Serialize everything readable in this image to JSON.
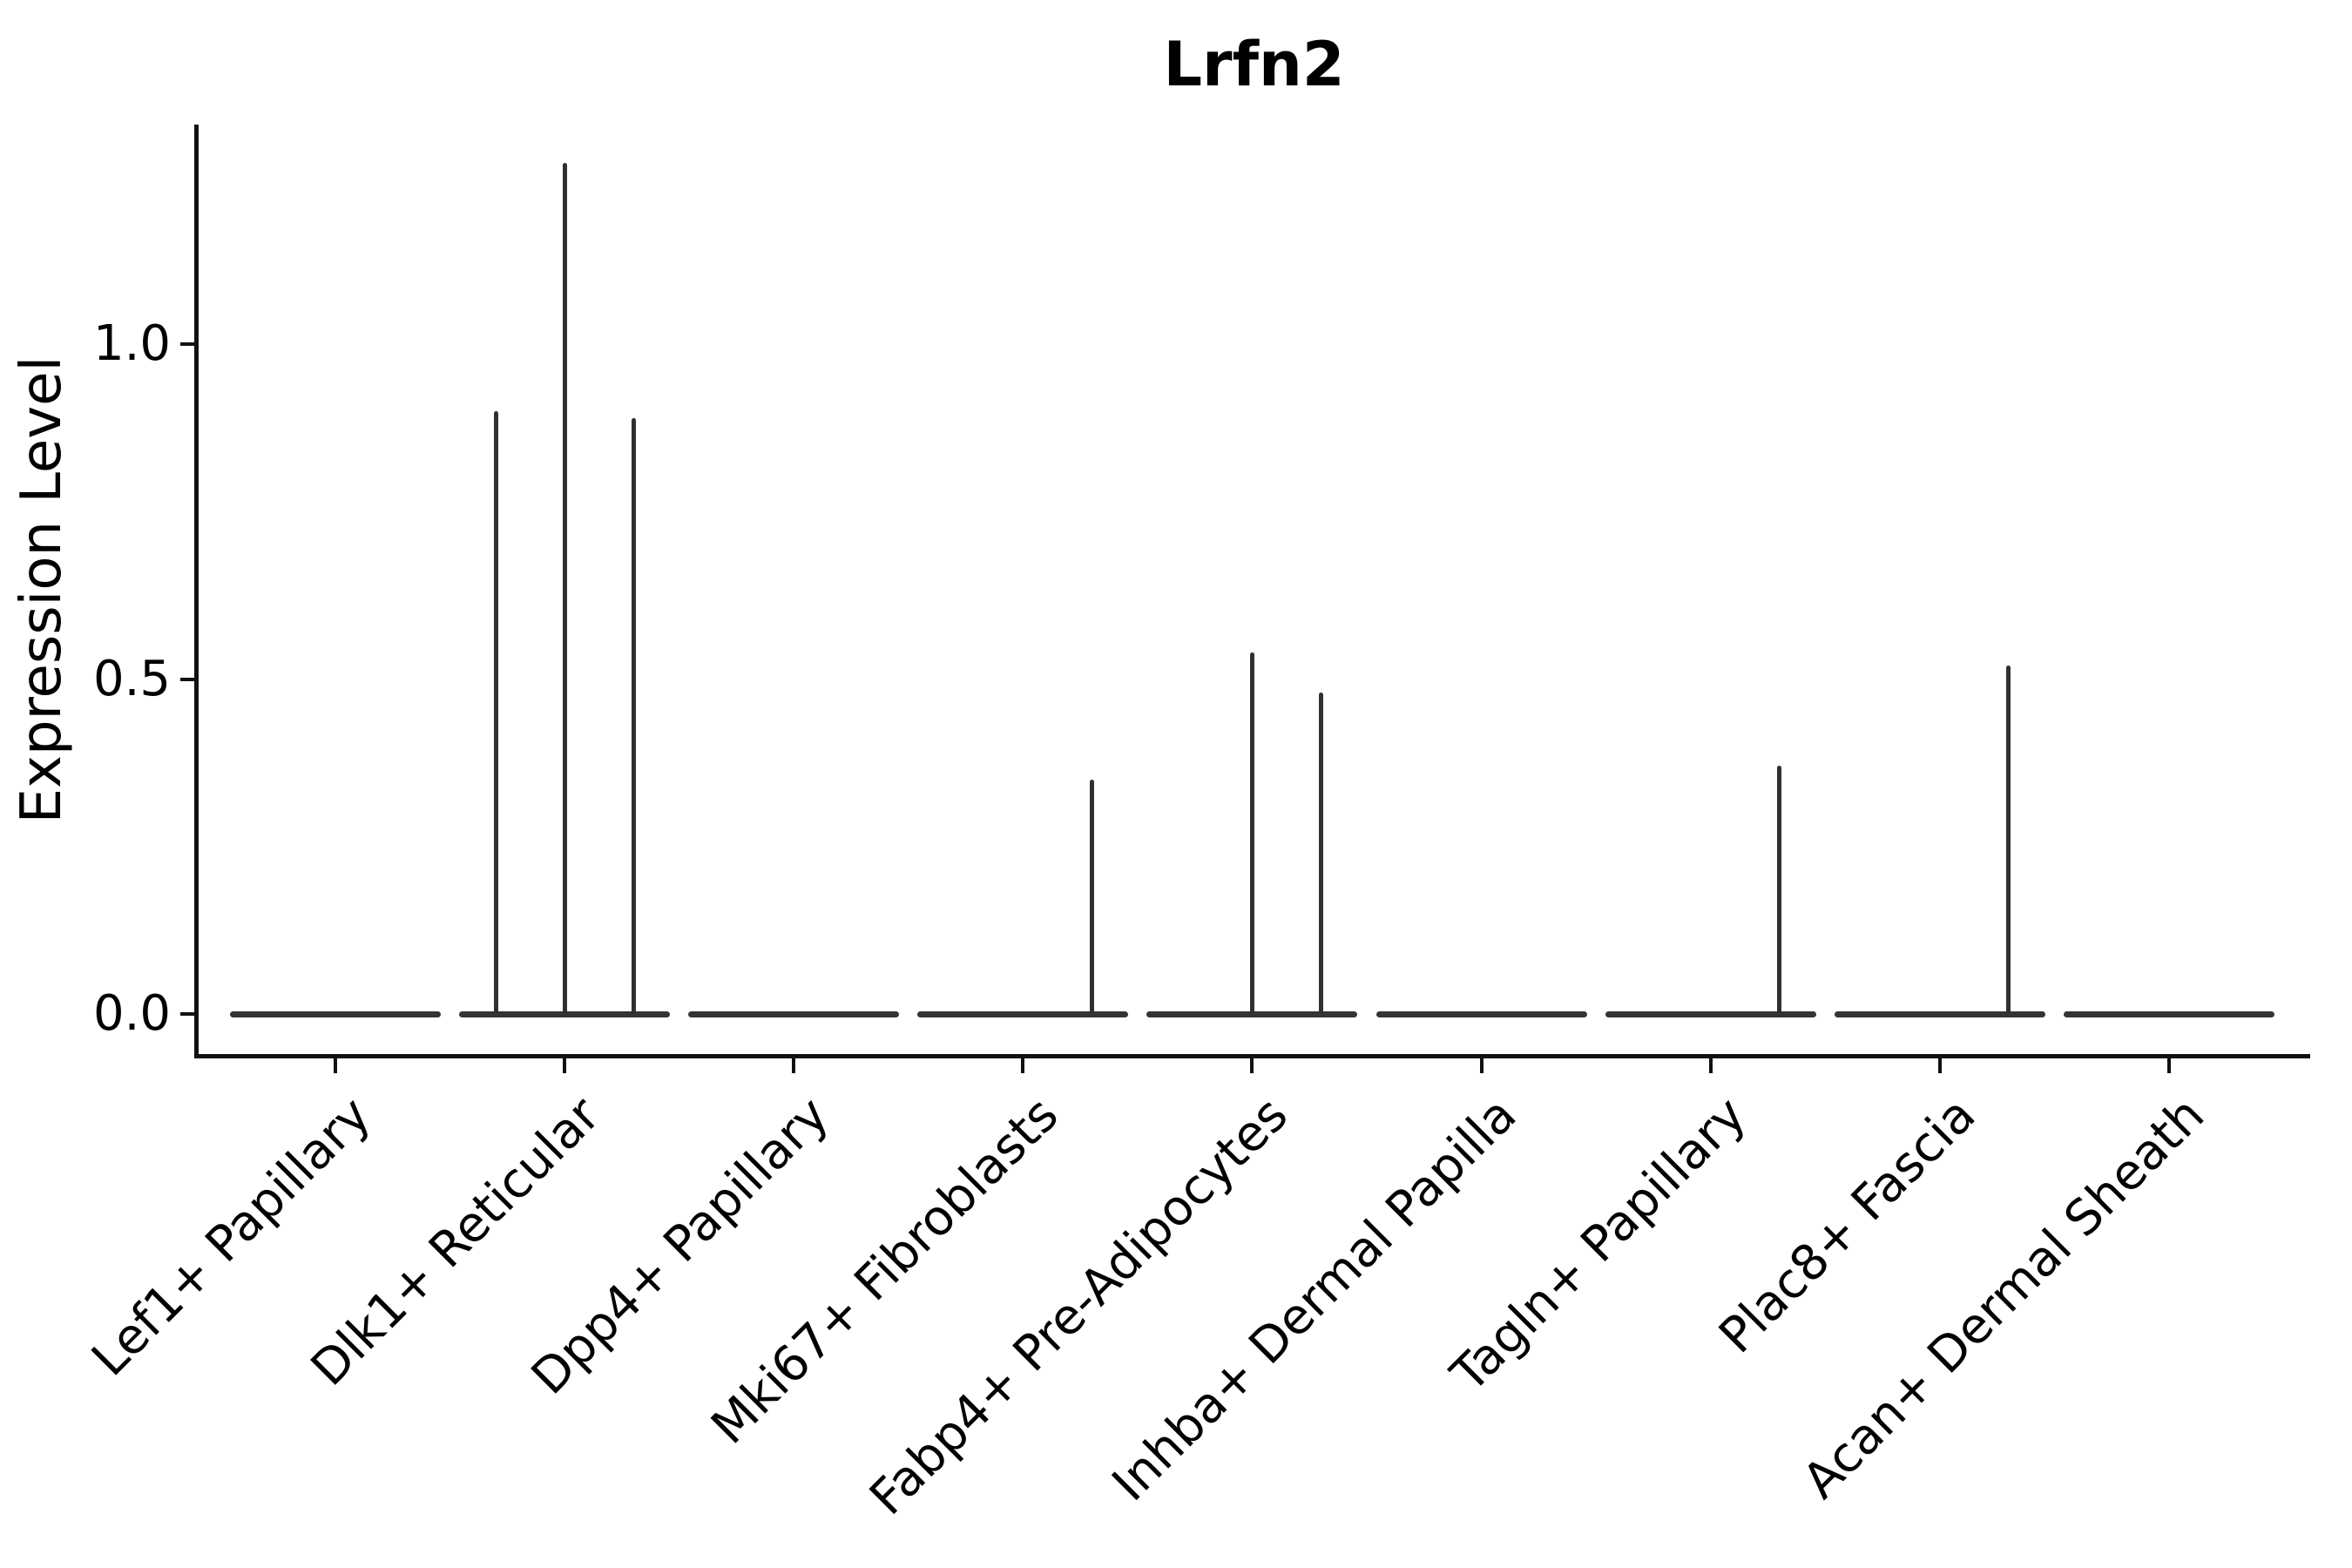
{
  "chart_data": {
    "type": "violin",
    "title": "Lrfn2",
    "ylabel": "Expression Level",
    "xlabel": "",
    "grid": false,
    "legend": false,
    "ylim": [
      -0.06,
      1.32
    ],
    "yticks": [
      "0.0",
      "0.5",
      "1.0"
    ],
    "ytick_values": [
      0.0,
      0.5,
      1.0
    ],
    "categories": [
      "Lef1+ Papillary",
      "Dlk1+ Reticular",
      "Dpp4+ Papillary",
      "Mki67+ Fibroblasts",
      "Fabp4+ Pre-Adipocytes",
      "Inhba+ Dermal Papilla",
      "Tagln+ Papillary",
      "Plac8+ Fascia",
      "Acan+ Dermal Sheath"
    ],
    "baseline_value": 0.0,
    "violin_width_fraction": 0.92,
    "series": [
      {
        "name": "Lef1+ Papillary",
        "baseline": 0.0,
        "spikes": []
      },
      {
        "name": "Dlk1+ Reticular",
        "baseline": 0.0,
        "spikes": [
          {
            "offset": -0.3,
            "value": 0.9
          },
          {
            "offset": 0.0,
            "value": 1.27
          },
          {
            "offset": 0.3,
            "value": 0.89
          }
        ]
      },
      {
        "name": "Dpp4+ Papillary",
        "baseline": 0.0,
        "spikes": []
      },
      {
        "name": "Mki67+ Fibroblasts",
        "baseline": 0.0,
        "spikes": [
          {
            "offset": 0.3,
            "value": 0.35
          }
        ]
      },
      {
        "name": "Fabp4+ Pre-Adipocytes",
        "baseline": 0.0,
        "spikes": [
          {
            "offset": 0.0,
            "value": 0.54
          },
          {
            "offset": 0.3,
            "value": 0.48
          }
        ]
      },
      {
        "name": "Inhba+ Dermal Papilla",
        "baseline": 0.0,
        "spikes": []
      },
      {
        "name": "Tagln+ Papillary",
        "baseline": 0.0,
        "spikes": [
          {
            "offset": 0.3,
            "value": 0.37
          }
        ]
      },
      {
        "name": "Plac8+ Fascia",
        "baseline": 0.0,
        "spikes": [
          {
            "offset": 0.3,
            "value": 0.52
          }
        ]
      },
      {
        "name": "Acan+ Dermal Sheath",
        "baseline": 0.0,
        "spikes": []
      }
    ],
    "colors": {
      "violin_stroke": "#303030",
      "spine": "#111111",
      "text": "#000000",
      "background": "#ffffff"
    }
  }
}
